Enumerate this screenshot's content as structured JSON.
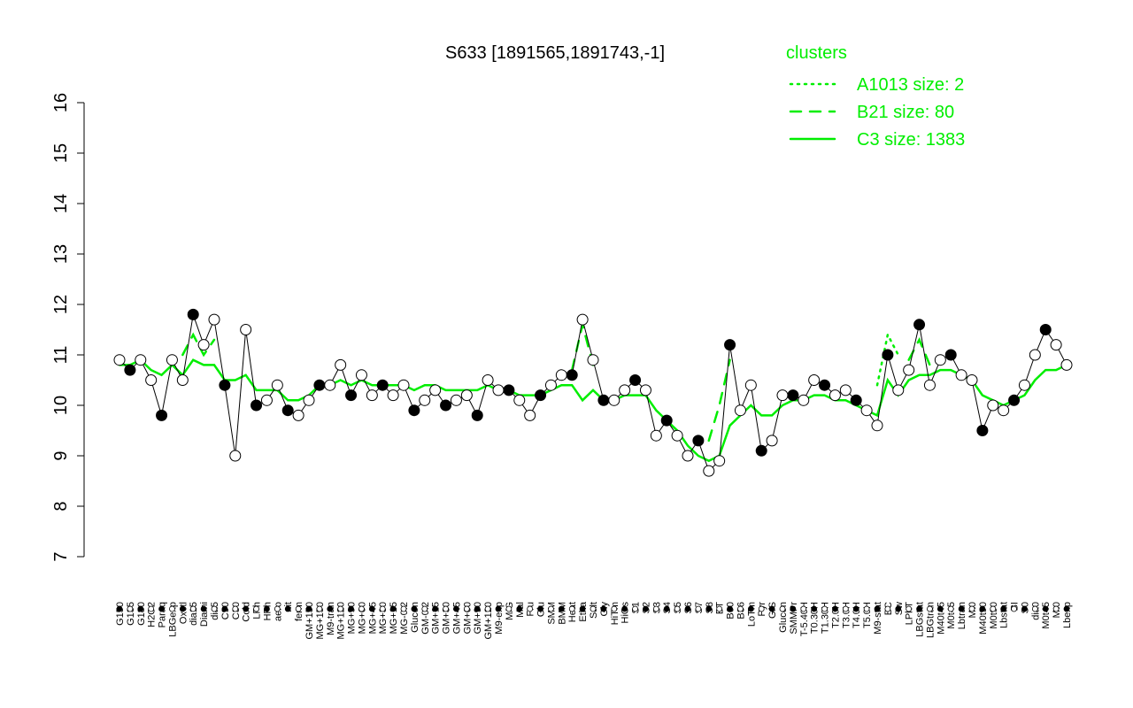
{
  "chart_data": {
    "type": "line",
    "title": "S633 [1891565,1891743,-1]",
    "legend_title": "clusters",
    "point_color": "#000000",
    "categories": [
      "G150",
      "G135",
      "G180",
      "H2O2",
      "Paraq",
      "LBGexp",
      "Oxctl",
      "dia15",
      "Diami",
      "dia5",
      "C90",
      "C30",
      "Cold",
      "LPh",
      "HPh",
      "aero",
      "nit",
      "ferm",
      "GM+150",
      "MG+150",
      "M9-tran",
      "MG+120",
      "MG+90",
      "MG+60",
      "MG+45",
      "MG+30",
      "MG+15",
      "MG-0.2",
      "Glucon",
      "GM-0.2",
      "GM+15",
      "GM+30",
      "GM+45",
      "GM+60",
      "GM+90",
      "GM+120",
      "M9-exp",
      "M/G",
      "Mal",
      "Fru",
      "Glu",
      "SMM",
      "BMM",
      "Heat",
      "Etha",
      "Salt",
      "Gly",
      "HiTm",
      "HiOs",
      "S1",
      "S2",
      "S3",
      "S4",
      "S5",
      "S6",
      "S7",
      "S8",
      "BT",
      "B60",
      "B36",
      "LoTm",
      "Pyr",
      "G/S",
      "Glucon",
      "SMMPr",
      "T-5.40H",
      "T0.30H",
      "T1.30H",
      "T2.0H",
      "T3.0H",
      "T4.0H",
      "T5.0H",
      "M9-stat",
      "BC",
      "Sw",
      "LPhT",
      "LBGstat",
      "LBGtran",
      "M40t45",
      "M0t45",
      "Lbtran",
      "Mt0",
      "M40t90",
      "M0t90",
      "Lbstat",
      "BI",
      "S0",
      "dia0",
      "M0t45",
      "Mt0",
      "Lbexp"
    ],
    "values": [
      10.9,
      10.7,
      10.9,
      10.5,
      9.8,
      10.9,
      10.5,
      11.8,
      11.2,
      11.7,
      10.4,
      9.0,
      11.5,
      10.0,
      10.1,
      10.4,
      9.9,
      9.8,
      10.1,
      10.4,
      10.4,
      10.8,
      10.2,
      10.6,
      10.2,
      10.4,
      10.2,
      10.4,
      9.9,
      10.1,
      10.3,
      10.0,
      10.1,
      10.2,
      9.8,
      10.5,
      10.3,
      10.3,
      10.1,
      9.8,
      10.2,
      10.4,
      10.6,
      10.6,
      11.7,
      10.9,
      10.1,
      10.1,
      10.3,
      10.5,
      10.3,
      9.4,
      9.7,
      9.4,
      9.0,
      9.3,
      8.7,
      8.9,
      11.2,
      9.9,
      10.4,
      9.1,
      9.3,
      10.2,
      10.2,
      10.1,
      10.5,
      10.4,
      10.2,
      10.3,
      10.1,
      9.9,
      9.6,
      11.0,
      10.3,
      10.7,
      11.6,
      10.4,
      10.9,
      11.0,
      10.6,
      10.5,
      9.5,
      10.0,
      9.9,
      10.1,
      10.4,
      11.0,
      11.5,
      11.2,
      10.8
    ],
    "series": [
      {
        "name": "A1013 size: 2",
        "color": "#00ee00",
        "dash": "dotted",
        "values": [
          null,
          null,
          null,
          null,
          null,
          null,
          null,
          null,
          null,
          null,
          null,
          null,
          null,
          null,
          null,
          null,
          null,
          null,
          null,
          null,
          null,
          null,
          null,
          null,
          null,
          null,
          null,
          null,
          null,
          null,
          null,
          null,
          null,
          null,
          null,
          null,
          null,
          null,
          null,
          null,
          null,
          null,
          null,
          null,
          null,
          null,
          null,
          null,
          null,
          null,
          null,
          null,
          null,
          null,
          null,
          null,
          null,
          null,
          null,
          null,
          null,
          null,
          null,
          null,
          null,
          null,
          null,
          null,
          null,
          null,
          null,
          null,
          10.4,
          11.4,
          11.0,
          null,
          null,
          null,
          null,
          null,
          null,
          null,
          null,
          null,
          null,
          null,
          null,
          null,
          null,
          null,
          null
        ]
      },
      {
        "name": "B21 size: 80",
        "color": "#00ee00",
        "dash": "dashed",
        "values": [
          null,
          null,
          null,
          null,
          null,
          null,
          11.0,
          11.4,
          11.0,
          11.3,
          null,
          null,
          null,
          null,
          null,
          null,
          null,
          null,
          null,
          null,
          null,
          null,
          null,
          null,
          null,
          null,
          null,
          null,
          null,
          null,
          null,
          null,
          null,
          null,
          null,
          null,
          null,
          null,
          null,
          null,
          null,
          null,
          null,
          10.7,
          11.6,
          10.8,
          null,
          null,
          null,
          null,
          null,
          null,
          null,
          null,
          null,
          null,
          9.3,
          10.0,
          10.9,
          null,
          null,
          null,
          null,
          null,
          null,
          null,
          null,
          null,
          null,
          null,
          null,
          null,
          null,
          null,
          null,
          10.9,
          11.3,
          10.8,
          null,
          null,
          null,
          null,
          null,
          null,
          null,
          null,
          null,
          null,
          null,
          null,
          null
        ]
      },
      {
        "name": "C3 size: 1383",
        "color": "#00ee00",
        "dash": "solid",
        "values": [
          10.8,
          10.8,
          10.9,
          10.7,
          10.6,
          10.8,
          10.6,
          10.9,
          10.8,
          10.8,
          10.5,
          10.5,
          10.6,
          10.3,
          10.3,
          10.3,
          10.1,
          10.1,
          10.2,
          10.4,
          10.4,
          10.5,
          10.4,
          10.5,
          10.4,
          10.4,
          10.4,
          10.4,
          10.3,
          10.4,
          10.4,
          10.3,
          10.3,
          10.3,
          10.3,
          10.4,
          10.3,
          10.3,
          10.2,
          10.2,
          10.2,
          10.3,
          10.4,
          10.4,
          10.1,
          10.3,
          10.1,
          10.1,
          10.2,
          10.2,
          10.2,
          9.9,
          9.7,
          9.5,
          9.2,
          9.0,
          8.9,
          9.0,
          9.6,
          9.8,
          10.0,
          9.8,
          9.8,
          10.0,
          10.1,
          10.1,
          10.2,
          10.2,
          10.1,
          10.1,
          10.0,
          9.9,
          9.8,
          10.5,
          10.2,
          10.5,
          10.6,
          10.6,
          10.7,
          10.7,
          10.6,
          10.5,
          10.2,
          10.1,
          10.0,
          10.1,
          10.2,
          10.5,
          10.7,
          10.7,
          10.8
        ]
      }
    ],
    "ylim": [
      7,
      16
    ],
    "yticks": [
      7,
      8,
      9,
      10,
      11,
      12,
      13,
      14,
      15,
      16
    ]
  }
}
